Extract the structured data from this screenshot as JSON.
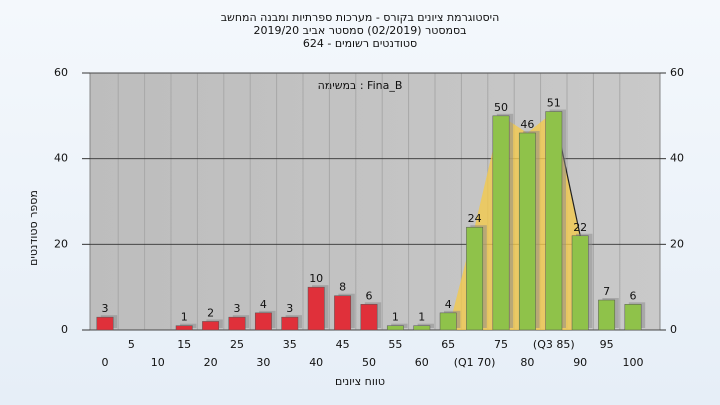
{
  "chart_data": {
    "type": "bar",
    "title": [
      "היסטוגרמת ציונים בקורס - מערכות ספרתיות ומבנה המחשב",
      "בסמסטר  (02/2019)  סמסטר אביב 2019/20",
      "סטודנטים רשומים - 624"
    ],
    "annotation": "במשימה : Fina_B",
    "ylabel": "מספר סטודנטים",
    "xlabel": "טווח ציונים",
    "categories": [
      "0",
      "5",
      "10",
      "15",
      "20",
      "25",
      "30",
      "35",
      "40",
      "45",
      "50",
      "55",
      "60",
      "65",
      "(Q1 70)",
      "75",
      "80",
      "(Q3 85)",
      "90",
      "95",
      "100"
    ],
    "values": [
      3,
      0,
      0,
      1,
      2,
      3,
      4,
      3,
      10,
      8,
      6,
      1,
      1,
      4,
      24,
      50,
      46,
      51,
      22,
      7,
      6
    ],
    "colors": [
      "#e0303a",
      "#e0303a",
      "#e0303a",
      "#e0303a",
      "#e0303a",
      "#e0303a",
      "#e0303a",
      "#e0303a",
      "#e0303a",
      "#e0303a",
      "#e0303a",
      "#8fc24a",
      "#8fc24a",
      "#8fc24a",
      "#8fc24a",
      "#8fc24a",
      "#8fc24a",
      "#8fc24a",
      "#8fc24a",
      "#8fc24a",
      "#8fc24a"
    ],
    "ylim": [
      0,
      60
    ],
    "yticks": [
      0,
      20,
      40,
      60
    ],
    "grid": true
  }
}
